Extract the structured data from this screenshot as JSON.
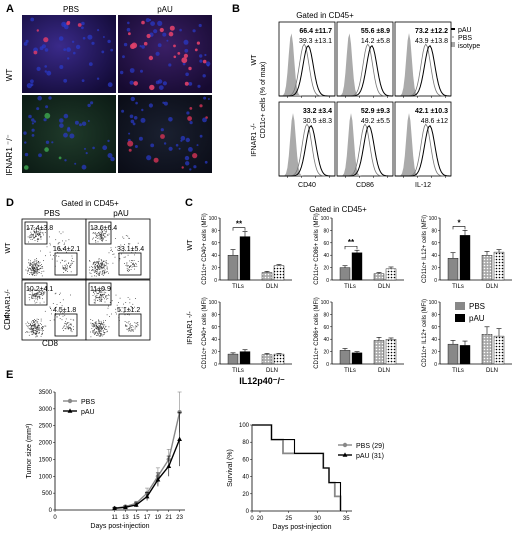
{
  "panels": {
    "A": {
      "letter": "A",
      "col_labels": [
        "PBS",
        "pAU"
      ],
      "row_labels": [
        "WT",
        "IFNAR1 ⁻/⁻"
      ]
    },
    "B": {
      "letter": "B",
      "title": "Gated in CD45+",
      "ylabel": "CD11c+ cells\n(% of max)",
      "row_labels": [
        "WT",
        "IFNAR1 -/-"
      ],
      "col_xlabels": [
        "CD40",
        "CD86",
        "IL-12"
      ],
      "legend": [
        "pAU",
        "PBS",
        "isotype"
      ],
      "stats": [
        [
          [
            "66.4 ±11.7",
            "39.3 ±13.1"
          ],
          [
            "55.6 ±8.9",
            "14.2 ±5.8"
          ],
          [
            "73.2 ±12.2",
            "43.9 ±13.8"
          ]
        ],
        [
          [
            "33.2 ±3.4",
            "30.5 ±8.3"
          ],
          [
            "52.9 ±9.3",
            "49.2 ±5.5"
          ],
          [
            "42.1 ±10.3",
            "48.6 ±12"
          ]
        ]
      ]
    },
    "D": {
      "letter": "D",
      "title": "Gated in CD45+",
      "col_labels": [
        "PBS",
        "pAU"
      ],
      "row_labels": [
        "WT",
        "IFNAR1-/-"
      ],
      "xlabel": "CD8",
      "ylabel": "CD4",
      "quads": [
        [
          [
            "17.4±3.8",
            "16.4±2.1"
          ],
          [
            "13.6±6.4",
            "33.1±5.4"
          ]
        ],
        [
          [
            "10.2±4.1",
            "4.5±1.8"
          ],
          [
            "11±0.9",
            "5.1±1.2"
          ]
        ]
      ]
    },
    "C": {
      "letter": "C",
      "title": "Gated in CD45+",
      "row_labels": [
        "WT",
        "IFNAR1 -/-"
      ],
      "xticks": [
        "TILs",
        "DLN"
      ],
      "ylabels": [
        "CD11c+ CD40+ cells (MFI)",
        "CD11c+ CD86+ cells (MFI)",
        "CD11c+ IL12+ cells (MFI)"
      ],
      "legend": [
        "PBS",
        "pAU"
      ],
      "significance": [
        "**",
        "**",
        "*"
      ]
    },
    "E": {
      "letter": "E",
      "title": "IL12p40⁻/⁻",
      "tumor": {
        "ylabel": "Tumor size (mm³)",
        "xlabel": "Days post-injection",
        "legend": [
          "PBS",
          "pAU"
        ]
      },
      "survival": {
        "ylabel": "Survival (%)",
        "xlabel": "Days post-injection",
        "legend": [
          "PBS (29)",
          "pAU (31)"
        ]
      }
    }
  },
  "chart_data": [
    {
      "type": "bar",
      "panel": "C-WT-CD40",
      "categories": [
        "TILs",
        "DLN"
      ],
      "series": [
        {
          "name": "PBS",
          "values": [
            40,
            12
          ]
        },
        {
          "name": "pAU",
          "values": [
            70,
            23
          ]
        }
      ],
      "errors": [
        [
          9,
          2
        ],
        [
          8,
          2
        ]
      ],
      "ylabel": "CD11c+ CD40+ cells (MFI)",
      "ylim": [
        0,
        100
      ],
      "yticks": [
        "0",
        "20",
        "40",
        "60",
        "80",
        "100"
      ]
    },
    {
      "type": "bar",
      "panel": "C-WT-CD86",
      "categories": [
        "TILs",
        "DLN"
      ],
      "series": [
        {
          "name": "PBS",
          "values": [
            20,
            10
          ]
        },
        {
          "name": "pAU",
          "values": [
            44,
            18
          ]
        }
      ],
      "errors": [
        [
          3,
          2
        ],
        [
          4,
          3
        ]
      ],
      "ylabel": "CD11c+ CD86+ cells (MFI)",
      "ylim": [
        0,
        100
      ],
      "yticks": [
        "0",
        "20",
        "40",
        "60",
        "80",
        "100"
      ]
    },
    {
      "type": "bar",
      "panel": "C-WT-IL12",
      "categories": [
        "TILs",
        "DLN"
      ],
      "series": [
        {
          "name": "PBS",
          "values": [
            35,
            40
          ]
        },
        {
          "name": "pAU",
          "values": [
            72,
            45
          ]
        }
      ],
      "errors": [
        [
          9,
          6
        ],
        [
          8,
          4
        ]
      ],
      "ylabel": "CD11c+ IL12+ cells (MFI)",
      "ylim": [
        0,
        100
      ],
      "yticks": [
        "0",
        "20",
        "40",
        "60",
        "80",
        "100"
      ]
    },
    {
      "type": "bar",
      "panel": "C-IFNAR1-CD40",
      "categories": [
        "TILs",
        "DLN"
      ],
      "series": [
        {
          "name": "PBS",
          "values": [
            16,
            15
          ]
        },
        {
          "name": "pAU",
          "values": [
            20,
            16
          ]
        }
      ],
      "errors": [
        [
          2,
          2
        ],
        [
          3,
          1
        ]
      ],
      "ylabel": "CD11c+ CD40+ cells (MFI)",
      "ylim": [
        0,
        100
      ],
      "yticks": [
        "0",
        "20",
        "40",
        "60",
        "80",
        "100"
      ]
    },
    {
      "type": "bar",
      "panel": "C-IFNAR1-CD86",
      "categories": [
        "TILs",
        "DLN"
      ],
      "series": [
        {
          "name": "PBS",
          "values": [
            22,
            38
          ]
        },
        {
          "name": "pAU",
          "values": [
            18,
            40
          ]
        }
      ],
      "errors": [
        [
          3,
          5
        ],
        [
          2,
          2
        ]
      ],
      "ylabel": "CD11c+ CD86+ cells (MFI)",
      "ylim": [
        0,
        100
      ],
      "yticks": [
        "0",
        "20",
        "40",
        "60",
        "80",
        "100"
      ]
    },
    {
      "type": "bar",
      "panel": "C-IFNAR1-IL12",
      "categories": [
        "TILs",
        "DLN"
      ],
      "series": [
        {
          "name": "PBS",
          "values": [
            32,
            48
          ]
        },
        {
          "name": "pAU",
          "values": [
            30,
            45
          ]
        }
      ],
      "errors": [
        [
          6,
          12
        ],
        [
          7,
          12
        ]
      ],
      "ylabel": "CD11c+ IL12+ cells (MFI)",
      "ylim": [
        0,
        100
      ],
      "yticks": [
        "0",
        "20",
        "40",
        "60",
        "80",
        "100"
      ]
    },
    {
      "type": "line",
      "panel": "E-tumor",
      "x": [
        11,
        13,
        15,
        17,
        19,
        21,
        23
      ],
      "xticks": [
        "0",
        "11",
        "13",
        "15",
        "17",
        "19",
        "21",
        "23"
      ],
      "series": [
        {
          "name": "PBS",
          "values": [
            50,
            100,
            200,
            500,
            1000,
            1500,
            2900
          ],
          "errors": [
            30,
            40,
            60,
            150,
            250,
            300,
            600
          ]
        },
        {
          "name": "pAU",
          "values": [
            50,
            80,
            150,
            400,
            900,
            1300,
            2100
          ],
          "errors": [
            30,
            40,
            60,
            120,
            200,
            300,
            800
          ]
        }
      ],
      "xlabel": "Days post-injection",
      "ylabel": "Tumor size (mm³)",
      "xlim": [
        0,
        24
      ],
      "ylim": [
        0,
        3500
      ],
      "yticks": [
        "0",
        "500",
        "1000",
        "1500",
        "2000",
        "2500",
        "3000",
        "3500"
      ]
    },
    {
      "type": "line",
      "panel": "E-survival",
      "x_ticks": [
        "0",
        "20",
        "25",
        "30",
        "35"
      ],
      "series": [
        {
          "name": "PBS (29)",
          "steps": [
            [
              0,
              100
            ],
            [
              22,
              100
            ],
            [
              22,
              83
            ],
            [
              24,
              83
            ],
            [
              24,
              67
            ],
            [
              31,
              67
            ],
            [
              31,
              50
            ],
            [
              32,
              50
            ],
            [
              32,
              33
            ],
            [
              33,
              33
            ],
            [
              33,
              17
            ],
            [
              34,
              17
            ],
            [
              34,
              0
            ]
          ]
        },
        {
          "name": "pAU (31)",
          "steps": [
            [
              0,
              100
            ],
            [
              22,
              100
            ],
            [
              22,
              83
            ],
            [
              26,
              83
            ],
            [
              26,
              67
            ],
            [
              31,
              67
            ],
            [
              31,
              50
            ],
            [
              32,
              50
            ],
            [
              32,
              33
            ],
            [
              34,
              33
            ],
            [
              34,
              0
            ]
          ]
        }
      ],
      "xlabel": "Days post-injection",
      "ylabel": "Survival (%)",
      "xlim": [
        0,
        36
      ],
      "ylim": [
        0,
        100
      ],
      "yticks": [
        "0",
        "20",
        "40",
        "60",
        "80",
        "100"
      ]
    }
  ]
}
